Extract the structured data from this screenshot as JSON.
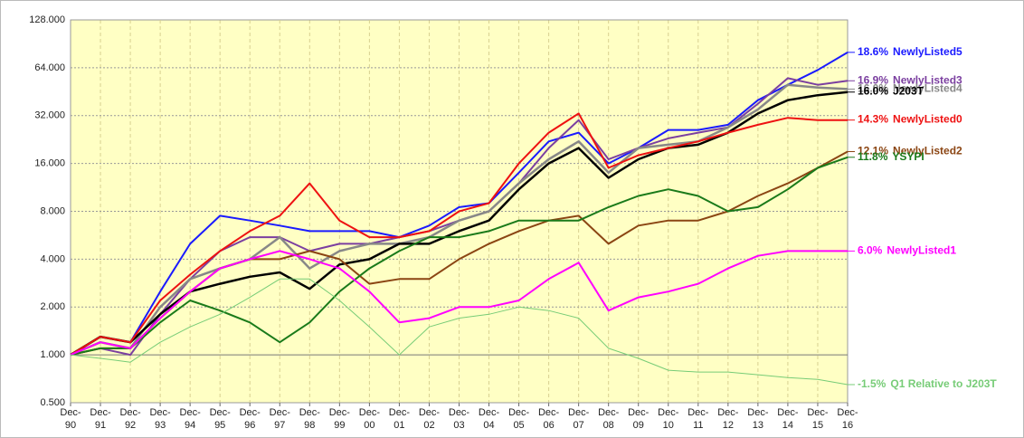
{
  "chart_data": {
    "type": "line",
    "yscale": "log",
    "grid": true,
    "plot_background": "#ffffc4",
    "categories": [
      "Dec-90",
      "Dec-91",
      "Dec-92",
      "Dec-93",
      "Dec-94",
      "Dec-95",
      "Dec-96",
      "Dec-97",
      "Dec-98",
      "Dec-99",
      "Dec-00",
      "Dec-01",
      "Dec-02",
      "Dec-03",
      "Dec-04",
      "Dec-05",
      "Dec-06",
      "Dec-07",
      "Dec-08",
      "Dec-09",
      "Dec-10",
      "Dec-11",
      "Dec-12",
      "Dec-13",
      "Dec-14",
      "Dec-15",
      "Dec-16"
    ],
    "ylim": [
      0.5,
      128
    ],
    "yticks": [
      {
        "value": 0.5,
        "label": "0.500"
      },
      {
        "value": 1,
        "label": "1.000"
      },
      {
        "value": 2,
        "label": "2.000"
      },
      {
        "value": 4,
        "label": "4.000"
      },
      {
        "value": 8,
        "label": "8.000"
      },
      {
        "value": 16,
        "label": "16.000"
      },
      {
        "value": 32,
        "label": "32.000"
      },
      {
        "value": 64,
        "label": "64.000"
      },
      {
        "value": 128,
        "label": "128.000"
      }
    ],
    "series": [
      {
        "name": "NewlyListed5",
        "cagr_label": "18.6%",
        "color": "#1a1aff",
        "width": 2,
        "values": [
          1,
          1.3,
          1.2,
          2.5,
          5,
          7.5,
          7,
          6.5,
          6,
          6,
          6,
          5.5,
          6.5,
          8.5,
          9,
          14,
          22,
          25,
          16,
          20,
          26,
          26,
          28,
          40,
          50,
          62,
          80
        ]
      },
      {
        "name": "NewlyListed3",
        "cagr_label": "16.9%",
        "color": "#7b3fa0",
        "width": 2,
        "values": [
          1,
          1.1,
          1.0,
          1.8,
          3,
          4.5,
          5.5,
          5.5,
          4.5,
          5,
          5,
          5.5,
          6,
          7,
          8,
          12,
          20,
          30,
          17,
          20,
          23,
          25,
          27,
          38,
          55,
          50,
          53
        ]
      },
      {
        "name": "NewlyListed4",
        "cagr_label": "16.0%",
        "color": "#888888",
        "width": 2.5,
        "values": [
          1,
          1.2,
          1.1,
          2,
          3,
          3.5,
          4,
          5.5,
          3.5,
          4.5,
          5,
          5,
          5.5,
          7,
          8,
          12,
          17,
          22,
          14,
          20,
          21,
          22,
          27,
          35,
          50,
          48,
          47
        ]
      },
      {
        "name": "J203T",
        "cagr_label": "16.0%",
        "color": "#000000",
        "width": 2.5,
        "values": [
          1,
          1.3,
          1.2,
          1.8,
          2.5,
          2.8,
          3.1,
          3.3,
          2.6,
          3.7,
          4,
          5,
          5,
          6,
          7,
          11,
          16,
          20,
          13,
          17,
          20,
          21,
          25,
          33,
          40,
          43,
          45
        ]
      },
      {
        "name": "NewlyListed0",
        "cagr_label": "14.3%",
        "color": "#ee1111",
        "width": 2,
        "values": [
          1,
          1.3,
          1.2,
          2.2,
          3.2,
          4.5,
          6,
          7.5,
          12,
          7,
          5.5,
          5.5,
          6,
          8,
          9,
          16,
          25,
          33,
          15,
          18,
          20,
          22,
          25,
          28,
          31,
          30,
          30
        ]
      },
      {
        "name": "NewlyListed2",
        "cagr_label": "12.1%",
        "color": "#8b4513",
        "width": 2,
        "values": [
          1,
          1.1,
          1.1,
          1.7,
          2.5,
          3.5,
          4,
          4,
          4.5,
          4,
          2.8,
          3,
          3,
          4,
          5,
          6,
          7,
          7.5,
          5,
          6.5,
          7,
          7,
          8,
          10,
          12,
          15,
          19
        ]
      },
      {
        "name": "YSYPI",
        "cagr_label": "11.8%",
        "color": "#1a7a1a",
        "width": 2,
        "values": [
          1,
          1.1,
          1.1,
          1.6,
          2.2,
          1.9,
          1.6,
          1.2,
          1.6,
          2.5,
          3.5,
          4.5,
          5.5,
          5.5,
          6,
          7,
          7,
          7,
          8.5,
          10,
          11,
          10,
          8,
          8.5,
          11,
          15,
          17.5
        ]
      },
      {
        "name": "NewlyListed1",
        "cagr_label": "6.0%",
        "color": "#ff00ff",
        "width": 2,
        "values": [
          1,
          1.2,
          1.1,
          1.7,
          2.5,
          3.5,
          4,
          4.5,
          4,
          3.5,
          2.5,
          1.6,
          1.7,
          2,
          2,
          2.2,
          3,
          3.8,
          1.9,
          2.3,
          2.5,
          2.8,
          3.5,
          4.2,
          4.5,
          4.5,
          4.5
        ]
      },
      {
        "name": "Q1 Relative to J203T",
        "cagr_label": "-1.5%",
        "color": "#77cc77",
        "width": 1,
        "values": [
          1,
          0.95,
          0.9,
          1.2,
          1.5,
          1.8,
          2.3,
          3,
          3,
          2.2,
          1.5,
          1,
          1.5,
          1.7,
          1.8,
          2,
          1.9,
          1.7,
          1.1,
          0.95,
          0.8,
          0.78,
          0.78,
          0.75,
          0.72,
          0.7,
          0.65
        ]
      }
    ]
  }
}
